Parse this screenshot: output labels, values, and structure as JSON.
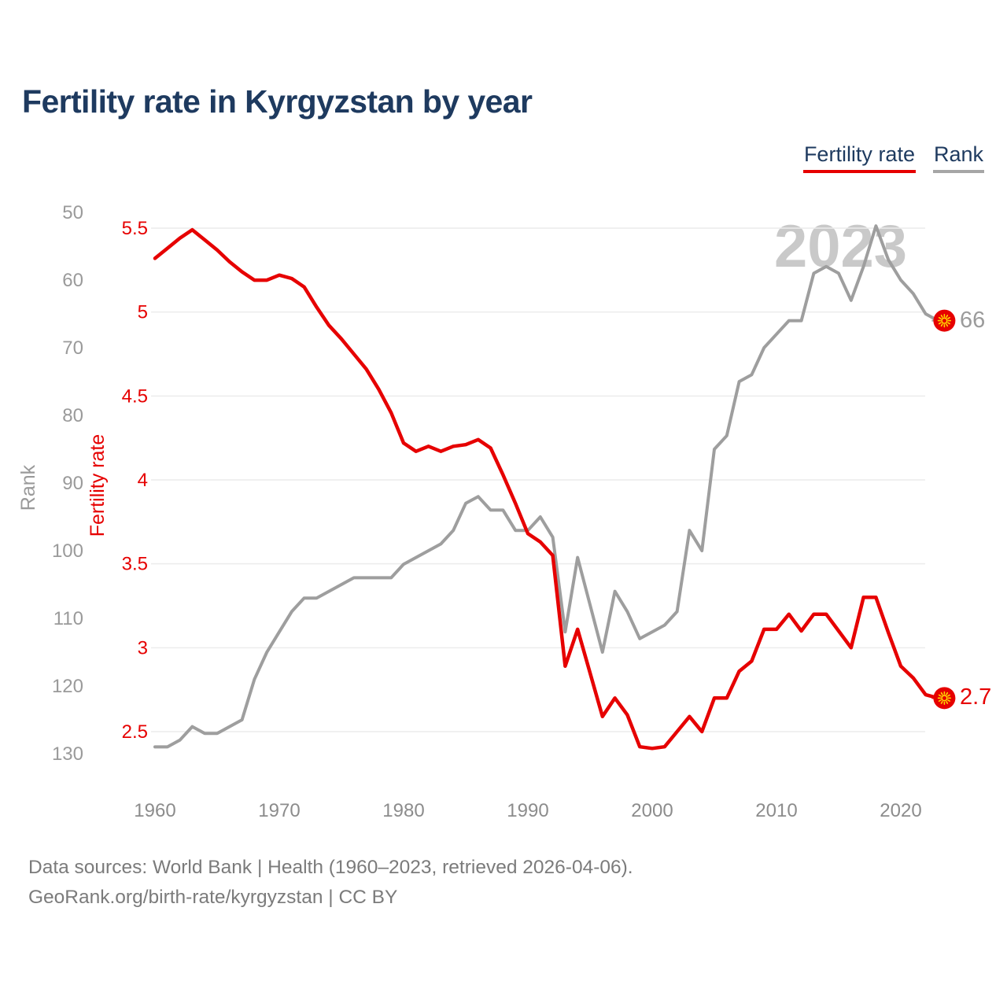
{
  "title": "Fertility rate in Kyrgyzstan by year",
  "legend": {
    "items": [
      {
        "label": "Fertility rate",
        "color": "#e60000"
      },
      {
        "label": "Rank",
        "color": "#a6a6a6"
      }
    ]
  },
  "watermark": "2023",
  "end_labels": {
    "rank": "66",
    "fertility": "2.7"
  },
  "footer": {
    "line1": "Data sources: World Bank | Health (1960–2023, retrieved 2026-04-06).",
    "line2": "GeoRank.org/birth-rate/kyrgyzstan | CC BY"
  },
  "colors": {
    "fertility_line": "#e60000",
    "rank_line": "#9e9e9e",
    "title_text": "#1e3a5f",
    "grid_line": "#ececec",
    "axis_tick_text": "#8c8c8c",
    "rank_tick_text": "#9a9a9a",
    "watermark_text": "#c9c9c9",
    "flag_dot_fill": "#e60000",
    "flag_sun": "#ffd700"
  },
  "chart_data": {
    "type": "line",
    "title": "Fertility rate in Kyrgyzstan by year",
    "grid": "horizontal",
    "legend_position": "top-right",
    "x_axis": {
      "ticks": [
        1960,
        1970,
        1980,
        1990,
        2000,
        2010,
        2020
      ]
    },
    "y_axis_rank": {
      "label": "Rank",
      "ticks": [
        50,
        60,
        70,
        80,
        90,
        100,
        110,
        120,
        130
      ],
      "inverted": true,
      "range": [
        50,
        130
      ]
    },
    "y_axis_fertility": {
      "label": "Fertility rate",
      "ticks": [
        5.5,
        5,
        4.5,
        4,
        3.5,
        3,
        2.5
      ],
      "range": [
        2.5,
        5.5
      ]
    },
    "x": [
      1960,
      1961,
      1962,
      1963,
      1964,
      1965,
      1966,
      1967,
      1968,
      1969,
      1970,
      1971,
      1972,
      1973,
      1974,
      1975,
      1976,
      1977,
      1978,
      1979,
      1980,
      1981,
      1982,
      1983,
      1984,
      1985,
      1986,
      1987,
      1988,
      1989,
      1990,
      1991,
      1992,
      1993,
      1994,
      1995,
      1996,
      1997,
      1998,
      1999,
      2000,
      2001,
      2002,
      2003,
      2004,
      2005,
      2006,
      2007,
      2008,
      2009,
      2010,
      2011,
      2012,
      2013,
      2014,
      2015,
      2016,
      2017,
      2018,
      2019,
      2020,
      2021,
      2022,
      2023
    ],
    "series": [
      {
        "name": "Fertility rate",
        "axis": "fertility",
        "color": "#e60000",
        "end_value_label": "2.7",
        "values": [
          5.32,
          5.38,
          5.44,
          5.49,
          5.43,
          5.37,
          5.3,
          5.24,
          5.19,
          5.19,
          5.22,
          5.2,
          5.15,
          5.03,
          4.92,
          4.84,
          4.75,
          4.66,
          4.54,
          4.4,
          4.22,
          4.17,
          4.2,
          4.17,
          4.2,
          4.21,
          4.24,
          4.19,
          4.03,
          3.86,
          3.68,
          3.63,
          3.55,
          2.89,
          3.11,
          2.85,
          2.59,
          2.7,
          2.6,
          2.41,
          2.4,
          2.41,
          2.5,
          2.59,
          2.5,
          2.7,
          2.7,
          2.86,
          2.92,
          3.11,
          3.11,
          3.2,
          3.1,
          3.2,
          3.2,
          3.1,
          3.0,
          3.3,
          3.3,
          3.09,
          2.89,
          2.82,
          2.72,
          2.7
        ]
      },
      {
        "name": "Rank",
        "axis": "rank",
        "color": "#9e9e9e",
        "end_value_label": "66",
        "values": [
          129,
          129,
          128,
          126,
          127,
          127,
          126,
          125,
          119,
          115,
          112,
          109,
          107,
          107,
          106,
          105,
          104,
          104,
          104,
          104,
          102,
          101,
          100,
          99,
          97,
          93,
          92,
          94,
          94,
          97,
          97,
          95,
          98,
          112,
          101,
          108,
          115,
          106,
          109,
          113,
          112,
          111,
          109,
          97,
          100,
          85,
          83,
          75,
          74,
          70,
          68,
          66,
          66,
          59,
          58,
          59,
          63,
          58,
          52,
          57,
          60,
          62,
          65,
          66
        ]
      }
    ]
  }
}
